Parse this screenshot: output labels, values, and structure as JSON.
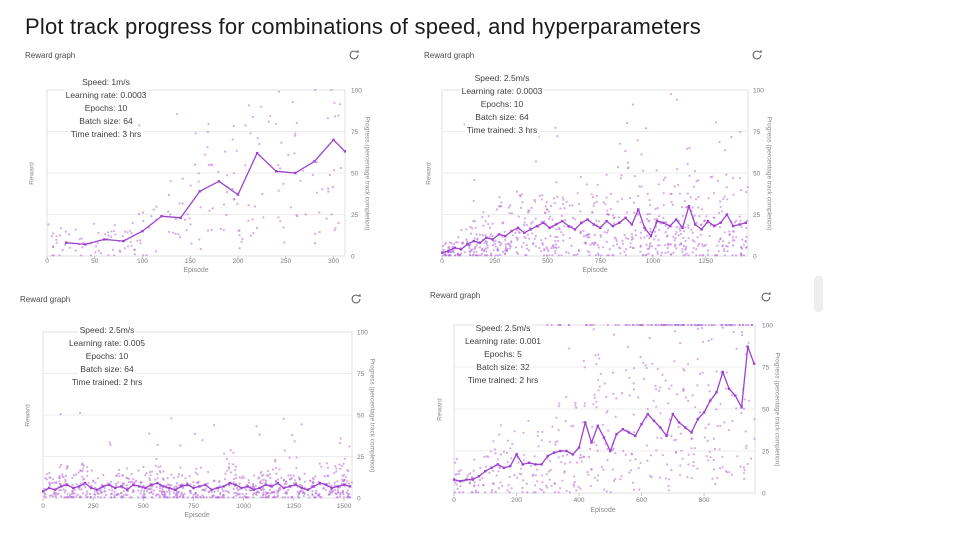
{
  "page": {
    "title": "Plot track progress for combinations of speed, and hyperparameters",
    "background": "#ffffff"
  },
  "colors": {
    "line": "#9c42cf",
    "scatter": "#b164d9",
    "grid": "#ececec",
    "frame": "#e2e2e2",
    "tick_text": "#7a7a7a",
    "axis_label": "#8b8b8b",
    "header_text": "#4a4a4a",
    "annotation_text": "#3f3f3f",
    "title_text": "#1c1c1c",
    "refresh_icon": "#5f6368"
  },
  "chart_data": [
    {
      "type": "scatter",
      "header": "Reward graph",
      "annotation": [
        "Speed: 1m/s",
        "Learning rate: 0.0003",
        "Epochs: 10",
        "Batch size: 64",
        "Time trained: 3 hrs"
      ],
      "xlabel": "Episode",
      "ylabel_left": "Reward",
      "ylabel_right": "Progress (percentage track completion)",
      "xlim": [
        0,
        312
      ],
      "ylim": [
        0,
        100
      ],
      "x_ticks": [
        0,
        50,
        100,
        150,
        200,
        250,
        300
      ],
      "y_ticks": [
        0,
        25,
        50,
        75,
        100
      ],
      "grid": true,
      "legend": "none",
      "avg_line": {
        "x": [
          20,
          40,
          60,
          80,
          100,
          120,
          140,
          160,
          180,
          200,
          220,
          240,
          260,
          280,
          300,
          312
        ],
        "y": [
          8,
          7,
          10,
          9,
          15,
          24,
          23,
          39,
          45,
          37,
          62,
          51,
          50,
          57,
          70,
          63
        ]
      },
      "scatter_gen": {
        "seed": 101,
        "count": 210,
        "scale_min": 0.15,
        "scale_max": 1.9,
        "pow": 1.2,
        "noise": 13,
        "tail_prob": 0.03,
        "tail_min": 55,
        "tail_max": 95,
        "tail_x_min_frac": 0.3
      }
    },
    {
      "type": "scatter",
      "header": "Reward graph",
      "annotation": [
        "Speed: 2.5m/s",
        "Learning rate: 0.0003",
        "Epochs: 10",
        "Batch size: 64",
        "Time trained: 3 hrs"
      ],
      "xlabel": "Episode",
      "ylabel_left": "Reward",
      "ylabel_right": "Progress (percentage track completion)",
      "xlim": [
        0,
        1450
      ],
      "ylim": [
        0,
        100
      ],
      "x_ticks": [
        0,
        250,
        500,
        750,
        1000,
        1250
      ],
      "y_ticks": [
        0,
        25,
        50,
        75,
        100
      ],
      "grid": true,
      "legend": "none",
      "avg_line": {
        "x": [
          0,
          30,
          60,
          90,
          120,
          150,
          180,
          210,
          240,
          270,
          300,
          330,
          360,
          390,
          420,
          450,
          480,
          510,
          540,
          570,
          600,
          630,
          660,
          690,
          720,
          750,
          780,
          810,
          840,
          870,
          900,
          930,
          960,
          990,
          1020,
          1050,
          1080,
          1110,
          1140,
          1170,
          1200,
          1230,
          1260,
          1290,
          1320,
          1350,
          1380,
          1410,
          1440
        ],
        "y": [
          2,
          3,
          5,
          4,
          7,
          9,
          8,
          11,
          10,
          13,
          12,
          15,
          17,
          14,
          16,
          18,
          20,
          17,
          19,
          21,
          18,
          16,
          20,
          22,
          19,
          17,
          21,
          18,
          20,
          23,
          19,
          28,
          17,
          12,
          21,
          20,
          18,
          22,
          17,
          30,
          19,
          16,
          21,
          18,
          20,
          25,
          18,
          19,
          20
        ]
      },
      "scatter_gen": {
        "seed": 202,
        "count": 720,
        "scale_min": 0.12,
        "scale_max": 2.6,
        "pow": 2.0,
        "noise": 10,
        "tail_prob": 0.05,
        "tail_min": 30,
        "tail_max": 100,
        "tail_x_min_frac": 0.05
      }
    },
    {
      "type": "scatter",
      "header": "Reward graph",
      "annotation": [
        "Speed: 2.5m/s",
        "Learning rate: 0.005",
        "Epochs: 10",
        "Batch size: 64",
        "Time trained: 2 hrs"
      ],
      "xlabel": "Episode",
      "ylabel_left": "Reward",
      "ylabel_right": "Progress (percentage track completion)",
      "xlim": [
        0,
        1540
      ],
      "ylim": [
        0,
        100
      ],
      "x_ticks": [
        0,
        250,
        500,
        750,
        1000,
        1250,
        1500
      ],
      "y_ticks": [
        0,
        25,
        50,
        75,
        100
      ],
      "grid": true,
      "legend": "none",
      "avg_line": {
        "x": [
          0,
          30,
          60,
          90,
          120,
          150,
          180,
          210,
          240,
          270,
          300,
          330,
          360,
          390,
          420,
          450,
          480,
          510,
          540,
          570,
          600,
          630,
          660,
          690,
          720,
          750,
          780,
          810,
          840,
          870,
          900,
          930,
          960,
          990,
          1020,
          1050,
          1080,
          1110,
          1140,
          1170,
          1200,
          1230,
          1260,
          1290,
          1320,
          1350,
          1380,
          1410,
          1440,
          1470,
          1500,
          1530
        ],
        "y": [
          4,
          6,
          5,
          7,
          8,
          6,
          7,
          9,
          6,
          5,
          7,
          8,
          6,
          7,
          5,
          8,
          7,
          6,
          8,
          9,
          7,
          6,
          5,
          7,
          8,
          6,
          7,
          8,
          5,
          6,
          7,
          9,
          8,
          6,
          7,
          5,
          6,
          8,
          7,
          9,
          6,
          7,
          8,
          6,
          5,
          7,
          9,
          8,
          6,
          7,
          8,
          7
        ]
      },
      "scatter_gen": {
        "seed": 303,
        "count": 780,
        "scale_min": 0.1,
        "scale_max": 2.6,
        "pow": 2.0,
        "noise": 6,
        "tail_prob": 0.06,
        "tail_min": 10,
        "tail_max": 52,
        "tail_x_min_frac": 0.02
      }
    },
    {
      "type": "scatter",
      "header": "Reward graph",
      "annotation": [
        "Speed: 2.5m/s",
        "Learning rate: 0.001",
        "Epochs: 5",
        "Batch size: 32",
        "Time trained: 2 hrs"
      ],
      "xlabel": "Episode",
      "ylabel_left": "Reward",
      "ylabel_right": "Progress (percentage track completion)",
      "xlim": [
        0,
        963
      ],
      "ylim": [
        0,
        100
      ],
      "x_ticks": [
        0,
        200,
        400,
        600,
        800
      ],
      "y_ticks": [
        0,
        25,
        50,
        75,
        100
      ],
      "grid": true,
      "legend": "none",
      "avg_line": {
        "x": [
          0,
          20,
          40,
          60,
          80,
          100,
          120,
          140,
          160,
          180,
          200,
          220,
          240,
          260,
          280,
          300,
          320,
          340,
          360,
          380,
          400,
          420,
          440,
          460,
          480,
          500,
          520,
          540,
          560,
          580,
          600,
          620,
          640,
          660,
          680,
          700,
          720,
          740,
          760,
          780,
          800,
          820,
          840,
          860,
          880,
          900,
          920,
          940,
          960
        ],
        "y": [
          8,
          7,
          8,
          8,
          10,
          13,
          15,
          17,
          15,
          16,
          23,
          17,
          18,
          17,
          17,
          22,
          24,
          25,
          25,
          23,
          27,
          42,
          30,
          40,
          33,
          25,
          35,
          38,
          36,
          34,
          41,
          47,
          43,
          39,
          34,
          47,
          42,
          39,
          36,
          44,
          48,
          55,
          60,
          72,
          62,
          58,
          51,
          87,
          77
        ]
      },
      "scatter_gen": {
        "seed": 404,
        "count": 430,
        "scale_min": 0.15,
        "scale_max": 2.1,
        "pow": 1.6,
        "noise": 16,
        "tail_prob": 0.05,
        "tail_min": 55,
        "tail_max": 100,
        "tail_x_min_frac": 0.35
      },
      "top_band": {
        "seed": 77,
        "count": 85,
        "y": 100,
        "x_min_frac": 0.15
      }
    }
  ]
}
